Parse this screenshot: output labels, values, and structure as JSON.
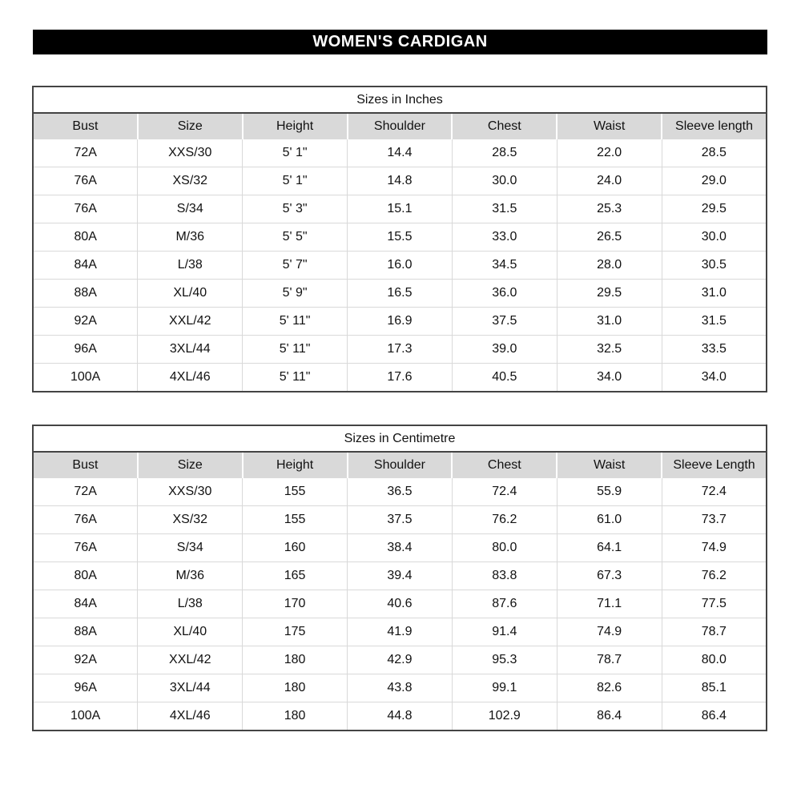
{
  "title_bar": {
    "label": "WOMEN'S CARDIGAN",
    "bg": "#000000",
    "text_color": "#ffffff"
  },
  "colors": {
    "header_row_bg": "#d9d9d9",
    "outer_border": "#444444",
    "grid_line": "#d9d9d9",
    "cell_text": "#111111"
  },
  "tables": [
    {
      "title": "Sizes in Inches",
      "headers": [
        "Bust",
        "Size",
        "Height",
        "Shoulder",
        "Chest",
        "Waist",
        "Sleeve length"
      ],
      "rows": [
        [
          "72A",
          "XXS/30",
          "5' 1\"",
          "14.4",
          "28.5",
          "22.0",
          "28.5"
        ],
        [
          "76A",
          "XS/32",
          "5' 1\"",
          "14.8",
          "30.0",
          "24.0",
          "29.0"
        ],
        [
          "76A",
          "S/34",
          "5' 3\"",
          "15.1",
          "31.5",
          "25.3",
          "29.5"
        ],
        [
          "80A",
          "M/36",
          "5' 5\"",
          "15.5",
          "33.0",
          "26.5",
          "30.0"
        ],
        [
          "84A",
          "L/38",
          "5' 7\"",
          "16.0",
          "34.5",
          "28.0",
          "30.5"
        ],
        [
          "88A",
          "XL/40",
          "5' 9\"",
          "16.5",
          "36.0",
          "29.5",
          "31.0"
        ],
        [
          "92A",
          "XXL/42",
          "5' 11\"",
          "16.9",
          "37.5",
          "31.0",
          "31.5"
        ],
        [
          "96A",
          "3XL/44",
          "5' 11\"",
          "17.3",
          "39.0",
          "32.5",
          "33.5"
        ],
        [
          "100A",
          "4XL/46",
          "5' 11\"",
          "17.6",
          "40.5",
          "34.0",
          "34.0"
        ]
      ]
    },
    {
      "title": "Sizes in Centimetre",
      "headers": [
        "Bust",
        "Size",
        "Height",
        "Shoulder",
        "Chest",
        "Waist",
        "Sleeve Length"
      ],
      "rows": [
        [
          "72A",
          "XXS/30",
          "155",
          "36.5",
          "72.4",
          "55.9",
          "72.4"
        ],
        [
          "76A",
          "XS/32",
          "155",
          "37.5",
          "76.2",
          "61.0",
          "73.7"
        ],
        [
          "76A",
          "S/34",
          "160",
          "38.4",
          "80.0",
          "64.1",
          "74.9"
        ],
        [
          "80A",
          "M/36",
          "165",
          "39.4",
          "83.8",
          "67.3",
          "76.2"
        ],
        [
          "84A",
          "L/38",
          "170",
          "40.6",
          "87.6",
          "71.1",
          "77.5"
        ],
        [
          "88A",
          "XL/40",
          "175",
          "41.9",
          "91.4",
          "74.9",
          "78.7"
        ],
        [
          "92A",
          "XXL/42",
          "180",
          "42.9",
          "95.3",
          "78.7",
          "80.0"
        ],
        [
          "96A",
          "3XL/44",
          "180",
          "43.8",
          "99.1",
          "82.6",
          "85.1"
        ],
        [
          "100A",
          "4XL/46",
          "180",
          "44.8",
          "102.9",
          "86.4",
          "86.4"
        ]
      ]
    }
  ]
}
